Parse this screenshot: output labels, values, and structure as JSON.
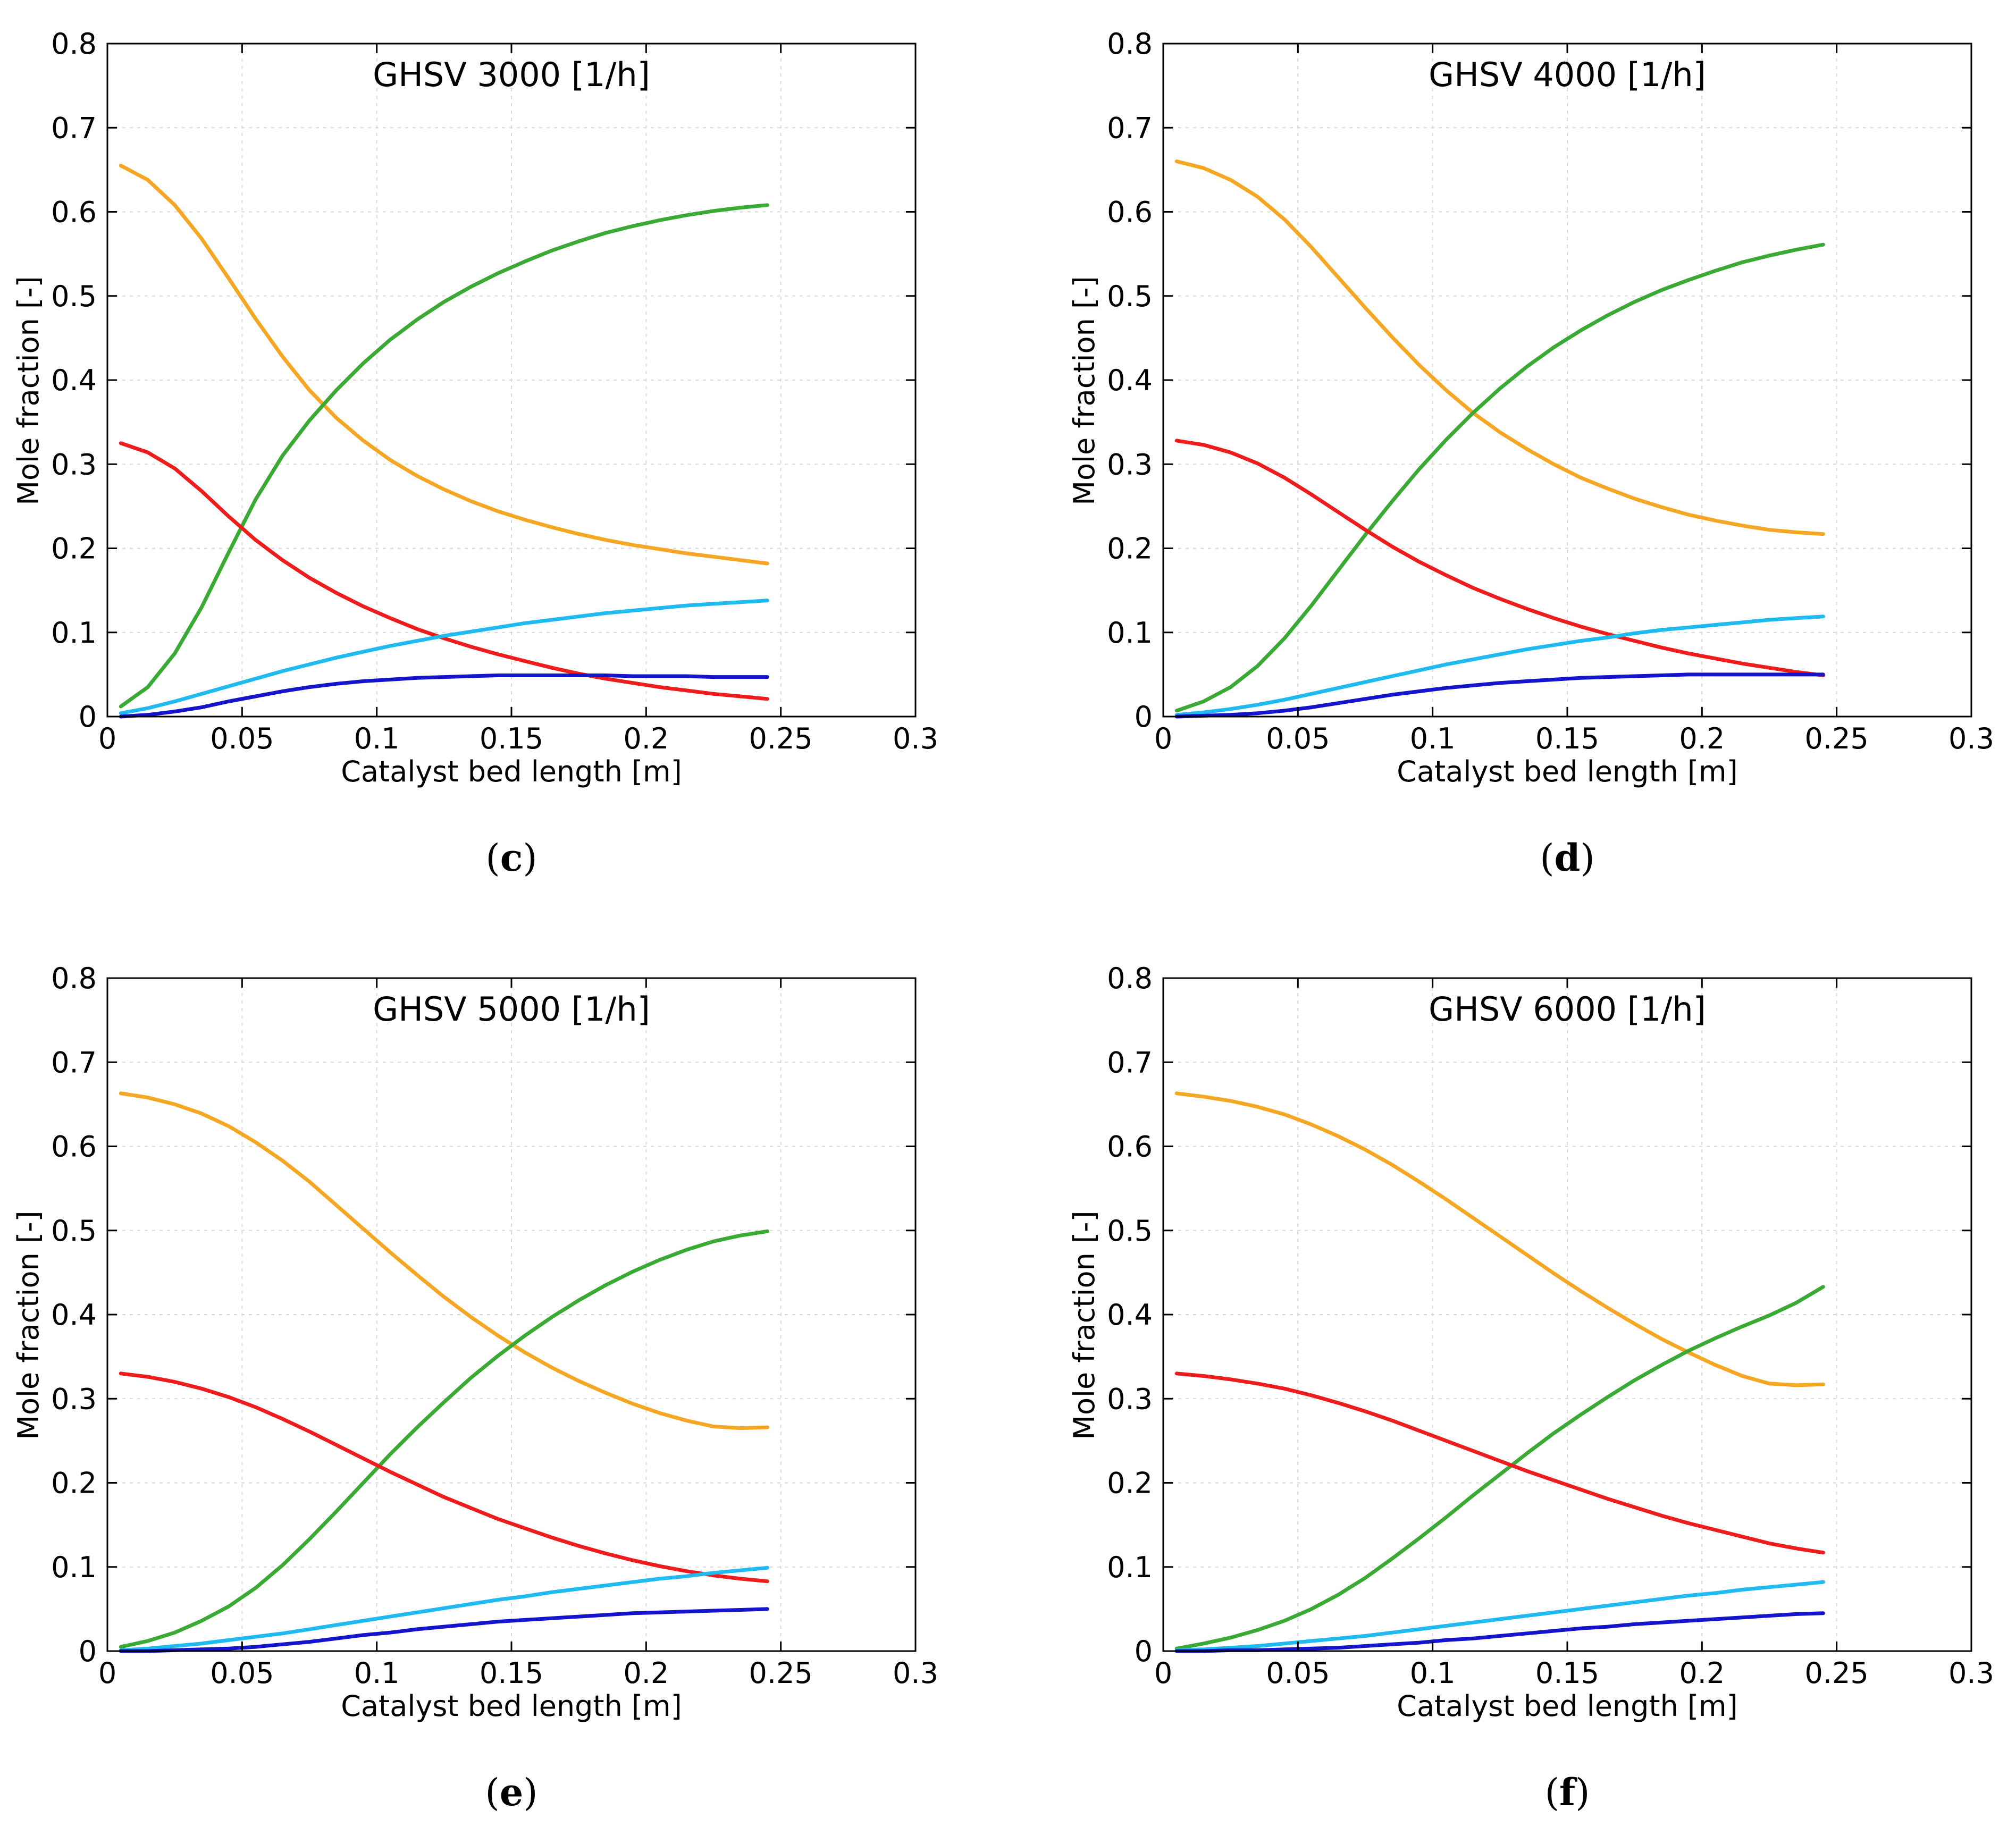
{
  "chart_data": [
    {
      "type": "line",
      "panel_label": "c",
      "title": "GHSV 3000 [1/h]",
      "xlabel": "Catalyst bed length [m]",
      "ylabel": "Mole fraction [-]",
      "xlim": [
        0,
        0.3
      ],
      "ylim": [
        0,
        0.8
      ],
      "xticks": [
        "0",
        "0.05",
        "0.1",
        "0.15",
        "0.2",
        "0.25",
        "0.3"
      ],
      "yticks": [
        "0",
        "0.1",
        "0.2",
        "0.3",
        "0.4",
        "0.5",
        "0.6",
        "0.7",
        "0.8"
      ],
      "grid": true,
      "x": [
        0.005,
        0.015,
        0.025,
        0.035,
        0.045,
        0.055,
        0.065,
        0.075,
        0.085,
        0.095,
        0.105,
        0.115,
        0.125,
        0.135,
        0.145,
        0.155,
        0.165,
        0.175,
        0.185,
        0.195,
        0.205,
        0.215,
        0.225,
        0.235,
        0.245
      ],
      "series": [
        {
          "name": "orange",
          "color": "#F5A623",
          "values": [
            0.655,
            0.638,
            0.608,
            0.568,
            0.521,
            0.473,
            0.428,
            0.388,
            0.355,
            0.328,
            0.305,
            0.286,
            0.27,
            0.256,
            0.244,
            0.234,
            0.225,
            0.217,
            0.21,
            0.204,
            0.199,
            0.194,
            0.19,
            0.186,
            0.182
          ]
        },
        {
          "name": "green",
          "color": "#3AAA35",
          "values": [
            0.012,
            0.035,
            0.075,
            0.13,
            0.195,
            0.258,
            0.31,
            0.352,
            0.388,
            0.42,
            0.448,
            0.472,
            0.493,
            0.511,
            0.527,
            0.541,
            0.554,
            0.565,
            0.575,
            0.583,
            0.59,
            0.596,
            0.601,
            0.605,
            0.608
          ]
        },
        {
          "name": "red",
          "color": "#EE1C1C",
          "values": [
            0.325,
            0.314,
            0.295,
            0.268,
            0.238,
            0.21,
            0.186,
            0.165,
            0.147,
            0.131,
            0.117,
            0.104,
            0.093,
            0.083,
            0.074,
            0.066,
            0.058,
            0.051,
            0.045,
            0.04,
            0.035,
            0.031,
            0.027,
            0.024,
            0.021
          ]
        },
        {
          "name": "light blue",
          "color": "#1EBAF0",
          "values": [
            0.004,
            0.01,
            0.018,
            0.027,
            0.036,
            0.045,
            0.054,
            0.062,
            0.07,
            0.077,
            0.084,
            0.09,
            0.096,
            0.101,
            0.106,
            0.111,
            0.115,
            0.119,
            0.123,
            0.126,
            0.129,
            0.132,
            0.134,
            0.136,
            0.138
          ]
        },
        {
          "name": "dark blue",
          "color": "#1414CC",
          "values": [
            0.0,
            0.002,
            0.006,
            0.011,
            0.018,
            0.024,
            0.03,
            0.035,
            0.039,
            0.042,
            0.044,
            0.046,
            0.047,
            0.048,
            0.049,
            0.049,
            0.049,
            0.049,
            0.049,
            0.048,
            0.048,
            0.048,
            0.047,
            0.047,
            0.047
          ]
        }
      ]
    },
    {
      "type": "line",
      "panel_label": "d",
      "title": "GHSV 4000 [1/h]",
      "xlabel": "Catalyst bed length [m]",
      "ylabel": "Mole fraction [-]",
      "xlim": [
        0,
        0.3
      ],
      "ylim": [
        0,
        0.8
      ],
      "xticks": [
        "0",
        "0.05",
        "0.1",
        "0.15",
        "0.2",
        "0.25",
        "0.3"
      ],
      "yticks": [
        "0",
        "0.1",
        "0.2",
        "0.3",
        "0.4",
        "0.5",
        "0.6",
        "0.7",
        "0.8"
      ],
      "grid": true,
      "x": [
        0.005,
        0.015,
        0.025,
        0.035,
        0.045,
        0.055,
        0.065,
        0.075,
        0.085,
        0.095,
        0.105,
        0.115,
        0.125,
        0.135,
        0.145,
        0.155,
        0.165,
        0.175,
        0.185,
        0.195,
        0.205,
        0.215,
        0.225,
        0.235,
        0.245
      ],
      "series": [
        {
          "name": "orange",
          "color": "#F5A623",
          "values": [
            0.66,
            0.652,
            0.638,
            0.618,
            0.591,
            0.558,
            0.522,
            0.486,
            0.451,
            0.418,
            0.388,
            0.361,
            0.338,
            0.318,
            0.3,
            0.284,
            0.271,
            0.259,
            0.249,
            0.24,
            0.233,
            0.227,
            0.222,
            0.219,
            0.217
          ]
        },
        {
          "name": "green",
          "color": "#3AAA35",
          "values": [
            0.007,
            0.018,
            0.035,
            0.06,
            0.093,
            0.132,
            0.174,
            0.216,
            0.256,
            0.294,
            0.329,
            0.361,
            0.39,
            0.416,
            0.439,
            0.459,
            0.477,
            0.493,
            0.507,
            0.519,
            0.53,
            0.54,
            0.548,
            0.555,
            0.561
          ]
        },
        {
          "name": "red",
          "color": "#EE1C1C",
          "values": [
            0.328,
            0.323,
            0.314,
            0.301,
            0.284,
            0.264,
            0.243,
            0.222,
            0.202,
            0.184,
            0.168,
            0.153,
            0.14,
            0.128,
            0.117,
            0.107,
            0.098,
            0.09,
            0.082,
            0.075,
            0.069,
            0.063,
            0.058,
            0.053,
            0.049
          ]
        },
        {
          "name": "light blue",
          "color": "#1EBAF0",
          "values": [
            0.002,
            0.005,
            0.009,
            0.014,
            0.02,
            0.027,
            0.034,
            0.041,
            0.048,
            0.055,
            0.062,
            0.068,
            0.074,
            0.08,
            0.085,
            0.09,
            0.094,
            0.099,
            0.103,
            0.106,
            0.109,
            0.112,
            0.115,
            0.117,
            0.119
          ]
        },
        {
          "name": "dark blue",
          "color": "#1414CC",
          "values": [
            0.0,
            0.001,
            0.002,
            0.004,
            0.007,
            0.011,
            0.016,
            0.021,
            0.026,
            0.03,
            0.034,
            0.037,
            0.04,
            0.042,
            0.044,
            0.046,
            0.047,
            0.048,
            0.049,
            0.05,
            0.05,
            0.05,
            0.05,
            0.05,
            0.05
          ]
        }
      ]
    },
    {
      "type": "line",
      "panel_label": "e",
      "title": "GHSV 5000 [1/h]",
      "xlabel": "Catalyst bed length [m]",
      "ylabel": "Mole fraction [-]",
      "xlim": [
        0,
        0.3
      ],
      "ylim": [
        0,
        0.8
      ],
      "xticks": [
        "0",
        "0.05",
        "0.1",
        "0.15",
        "0.2",
        "0.25",
        "0.3"
      ],
      "yticks": [
        "0",
        "0.1",
        "0.2",
        "0.3",
        "0.4",
        "0.5",
        "0.6",
        "0.7",
        "0.8"
      ],
      "grid": true,
      "x": [
        0.005,
        0.015,
        0.025,
        0.035,
        0.045,
        0.055,
        0.065,
        0.075,
        0.085,
        0.095,
        0.105,
        0.115,
        0.125,
        0.135,
        0.145,
        0.155,
        0.165,
        0.175,
        0.185,
        0.195,
        0.205,
        0.215,
        0.225,
        0.235,
        0.245
      ],
      "series": [
        {
          "name": "orange",
          "color": "#F5A623",
          "values": [
            0.663,
            0.658,
            0.65,
            0.639,
            0.624,
            0.605,
            0.583,
            0.558,
            0.53,
            0.502,
            0.474,
            0.447,
            0.421,
            0.397,
            0.375,
            0.355,
            0.337,
            0.321,
            0.307,
            0.294,
            0.283,
            0.274,
            0.267,
            0.265,
            0.266
          ]
        },
        {
          "name": "green",
          "color": "#3AAA35",
          "values": [
            0.005,
            0.012,
            0.022,
            0.036,
            0.053,
            0.075,
            0.102,
            0.133,
            0.166,
            0.2,
            0.234,
            0.266,
            0.296,
            0.325,
            0.351,
            0.375,
            0.397,
            0.417,
            0.435,
            0.451,
            0.465,
            0.477,
            0.487,
            0.494,
            0.499
          ]
        },
        {
          "name": "red",
          "color": "#EE1C1C",
          "values": [
            0.33,
            0.326,
            0.32,
            0.312,
            0.302,
            0.29,
            0.276,
            0.261,
            0.245,
            0.229,
            0.213,
            0.198,
            0.183,
            0.17,
            0.157,
            0.146,
            0.135,
            0.125,
            0.116,
            0.108,
            0.101,
            0.095,
            0.09,
            0.086,
            0.083
          ]
        },
        {
          "name": "light blue",
          "color": "#1EBAF0",
          "values": [
            0.001,
            0.003,
            0.006,
            0.009,
            0.013,
            0.017,
            0.021,
            0.026,
            0.031,
            0.036,
            0.041,
            0.046,
            0.051,
            0.056,
            0.061,
            0.065,
            0.07,
            0.074,
            0.078,
            0.082,
            0.086,
            0.089,
            0.093,
            0.096,
            0.099
          ]
        },
        {
          "name": "dark blue",
          "color": "#1414CC",
          "values": [
            0.0,
            0.0,
            0.001,
            0.002,
            0.003,
            0.005,
            0.008,
            0.011,
            0.015,
            0.019,
            0.022,
            0.026,
            0.029,
            0.032,
            0.035,
            0.037,
            0.039,
            0.041,
            0.043,
            0.045,
            0.046,
            0.047,
            0.048,
            0.049,
            0.05
          ]
        }
      ]
    },
    {
      "type": "line",
      "panel_label": "f",
      "title": "GHSV 6000 [1/h]",
      "xlabel": "Catalyst bed length [m]",
      "ylabel": "Mole fraction [-]",
      "xlim": [
        0,
        0.3
      ],
      "ylim": [
        0,
        0.8
      ],
      "xticks": [
        "0",
        "0.05",
        "0.1",
        "0.15",
        "0.2",
        "0.25",
        "0.3"
      ],
      "yticks": [
        "0",
        "0.1",
        "0.2",
        "0.3",
        "0.4",
        "0.5",
        "0.6",
        "0.7",
        "0.8"
      ],
      "grid": true,
      "x": [
        0.005,
        0.015,
        0.025,
        0.035,
        0.045,
        0.055,
        0.065,
        0.075,
        0.085,
        0.095,
        0.105,
        0.115,
        0.125,
        0.135,
        0.145,
        0.155,
        0.165,
        0.175,
        0.185,
        0.195,
        0.205,
        0.215,
        0.225,
        0.235,
        0.245
      ],
      "series": [
        {
          "name": "orange",
          "color": "#F5A623",
          "values": [
            0.663,
            0.659,
            0.654,
            0.647,
            0.638,
            0.626,
            0.612,
            0.596,
            0.578,
            0.558,
            0.537,
            0.515,
            0.493,
            0.471,
            0.449,
            0.428,
            0.408,
            0.389,
            0.371,
            0.355,
            0.34,
            0.327,
            0.318,
            0.316,
            0.317
          ]
        },
        {
          "name": "green",
          "color": "#3AAA35",
          "values": [
            0.003,
            0.009,
            0.016,
            0.025,
            0.036,
            0.05,
            0.067,
            0.087,
            0.11,
            0.134,
            0.159,
            0.185,
            0.21,
            0.235,
            0.259,
            0.281,
            0.302,
            0.322,
            0.34,
            0.357,
            0.372,
            0.386,
            0.399,
            0.414,
            0.433
          ]
        },
        {
          "name": "red",
          "color": "#EE1C1C",
          "values": [
            0.33,
            0.327,
            0.323,
            0.318,
            0.312,
            0.304,
            0.295,
            0.285,
            0.274,
            0.262,
            0.25,
            0.238,
            0.226,
            0.214,
            0.203,
            0.192,
            0.181,
            0.171,
            0.161,
            0.152,
            0.144,
            0.136,
            0.128,
            0.122,
            0.117
          ]
        },
        {
          "name": "light blue",
          "color": "#1EBAF0",
          "values": [
            0.001,
            0.002,
            0.004,
            0.006,
            0.009,
            0.012,
            0.015,
            0.018,
            0.022,
            0.026,
            0.03,
            0.034,
            0.038,
            0.042,
            0.046,
            0.05,
            0.054,
            0.058,
            0.062,
            0.066,
            0.069,
            0.073,
            0.076,
            0.079,
            0.082
          ]
        },
        {
          "name": "dark blue",
          "color": "#1414CC",
          "values": [
            0.0,
            0.0,
            0.001,
            0.001,
            0.002,
            0.003,
            0.004,
            0.006,
            0.008,
            0.01,
            0.013,
            0.015,
            0.018,
            0.021,
            0.024,
            0.027,
            0.029,
            0.032,
            0.034,
            0.036,
            0.038,
            0.04,
            0.042,
            0.044,
            0.045
          ]
        }
      ]
    }
  ]
}
